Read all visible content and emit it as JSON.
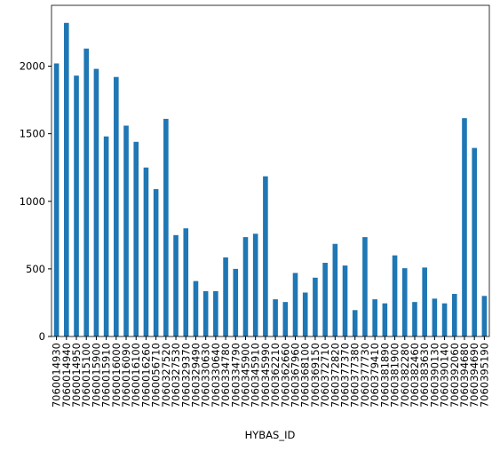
{
  "chart_data": {
    "type": "bar",
    "xlabel": "HYBAS_ID",
    "color": "#1f77b4",
    "categories": [
      "7060014930",
      "7060014940",
      "7060014950",
      "7060015100",
      "7060015900",
      "7060015910",
      "7060016000",
      "7060016090",
      "7060016100",
      "7060016260",
      "7060056710",
      "7060327520",
      "7060327530",
      "7060329370",
      "7060329490",
      "7060330630",
      "7060330640",
      "7060334780",
      "7060334790",
      "7060345900",
      "7060345910",
      "7060345990",
      "7060362210",
      "7060362660",
      "7060367960",
      "7060368100",
      "7060369150",
      "7060372710",
      "7060372820",
      "7060377370",
      "7060377380",
      "7060377730",
      "7060379410",
      "7060381890",
      "7060381900",
      "7060382280",
      "7060382460",
      "7060383630",
      "7060390130",
      "7060390140",
      "7060392060",
      "7060394680",
      "7060394690",
      "7060395190"
    ],
    "values": [
      2020,
      2320,
      1930,
      2130,
      1980,
      1480,
      1920,
      1560,
      1440,
      1250,
      1090,
      1610,
      750,
      800,
      410,
      335,
      335,
      585,
      500,
      735,
      760,
      1185,
      275,
      255,
      470,
      325,
      435,
      545,
      685,
      525,
      195,
      735,
      275,
      245,
      600,
      505,
      255,
      510,
      280,
      245,
      315,
      1615,
      1395,
      300
    ],
    "ylim": [
      0,
      2450
    ],
    "yticks": [
      0,
      500,
      1000,
      1500,
      2000
    ]
  }
}
